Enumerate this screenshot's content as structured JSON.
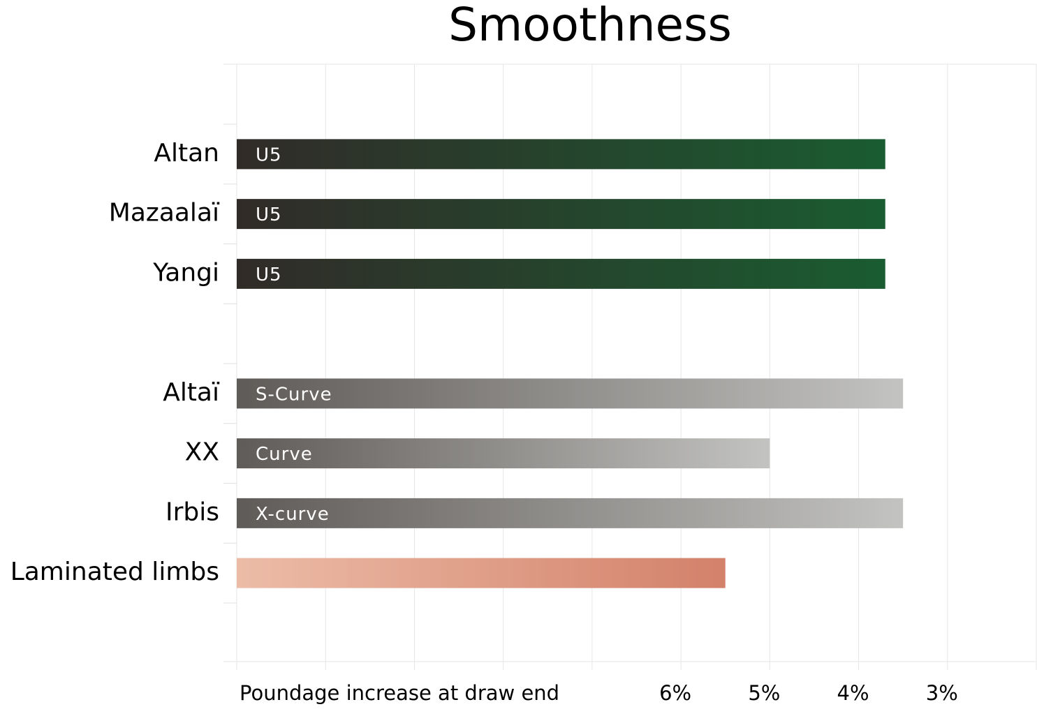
{
  "chart_data": {
    "type": "bar",
    "orientation": "horizontal",
    "title": "Smoothness",
    "x_label": "Poundage increase at draw end",
    "categories": [
      "Altan",
      "Mazaalaï",
      "Yangi",
      null,
      "Altaï",
      "XX",
      "Irbis",
      "Laminated limbs"
    ],
    "values": [
      3.7,
      3.7,
      3.7,
      null,
      3.5,
      5,
      3.5,
      5.5
    ],
    "bar_labels": [
      "U5",
      "U5",
      "U5",
      null,
      "S-Curve",
      "Curve",
      "X-curve",
      null
    ],
    "colors": [
      [
        "#312b28",
        "#1a5c31"
      ],
      [
        "#312b28",
        "#1a5c31"
      ],
      [
        "#312b28",
        "#1a5c31"
      ],
      null,
      [
        "#5f5b58",
        "#c3c3c1"
      ],
      [
        "#5f5b58",
        "#c3c3c1"
      ],
      [
        "#5f5b58",
        "#c3c3c1"
      ],
      [
        "#ecbca7",
        "#d3816a"
      ]
    ],
    "xlim": [
      11,
      2
    ],
    "xticks": [
      {
        "value": 6,
        "label": "6%"
      },
      {
        "value": 5,
        "label": "5%"
      },
      {
        "value": 4,
        "label": "4%"
      },
      {
        "value": 3,
        "label": "3%"
      }
    ],
    "xgrid": [
      11,
      10,
      9,
      8,
      7,
      6,
      5,
      4,
      3,
      2
    ],
    "grid": true
  }
}
